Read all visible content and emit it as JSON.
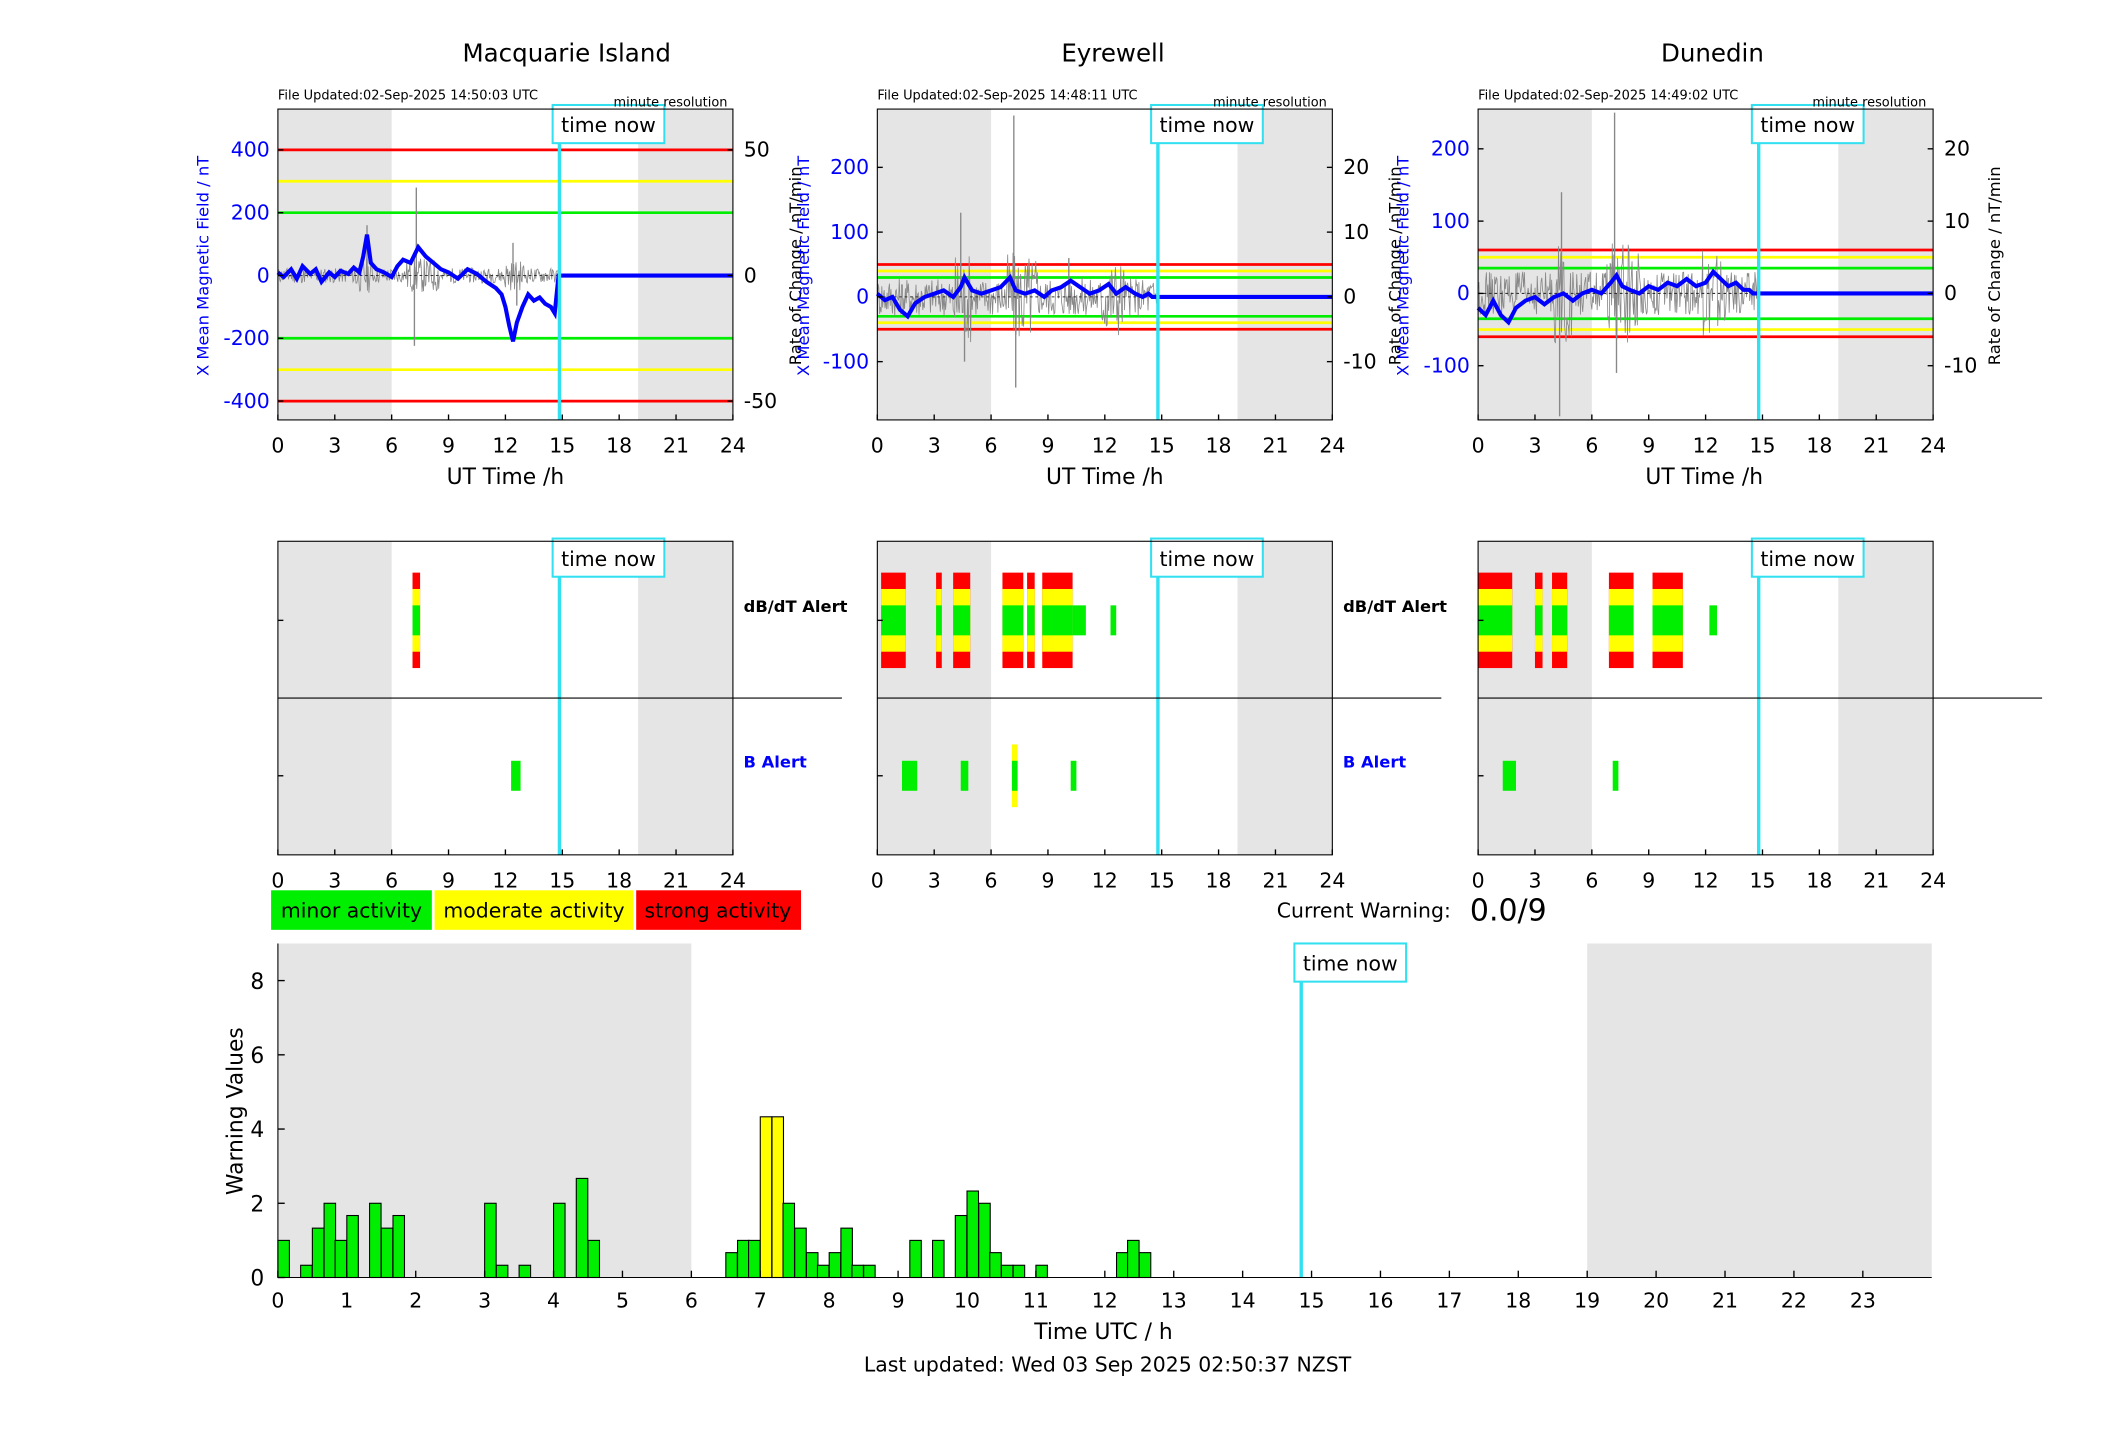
{
  "colors": {
    "minor": "#00ee00",
    "moderate": "#ffff00",
    "strong": "#ff0000",
    "time_now": "#33e0f0",
    "b_series": "#0000ff",
    "shade": "#e5e5e5"
  },
  "legend": {
    "minor": "minor activity",
    "moderate": "moderate activity",
    "strong": "strong activity"
  },
  "current_warning": {
    "label": "Current Warning:",
    "value": "0.0/9"
  },
  "time_now_label": "time now",
  "footer": "Last updated: Wed 03 Sep 2025 02:50:37 NZST",
  "alert_labels": {
    "dbdt": "dB/dT Alert",
    "b": "B Alert"
  },
  "stations": [
    {
      "name": "Macquarie Island",
      "file_updated": "File Updated:02-Sep-2025 14:50:03 UTC",
      "resolution": "minute resolution",
      "left_ylabel": "X Mean Magnetic Field / nT",
      "right_ylabel": "Rate of Change / nT/min",
      "xlabel": "UT Time /h",
      "left_ylim": [
        -460,
        530
      ],
      "left_ticks": [
        400,
        200,
        0,
        -200,
        -400
      ],
      "right_ticks": [
        50,
        0,
        -50
      ],
      "right_scale": 8,
      "thresholds": {
        "green": 200,
        "yellow": 300,
        "red": 400
      },
      "shade": [
        [
          0,
          6
        ],
        [
          19,
          24
        ]
      ],
      "time_now": 14.85,
      "b_series": [
        [
          0,
          10
        ],
        [
          0.3,
          -5
        ],
        [
          0.7,
          20
        ],
        [
          1,
          -10
        ],
        [
          1.3,
          30
        ],
        [
          1.7,
          5
        ],
        [
          2,
          20
        ],
        [
          2.3,
          -20
        ],
        [
          2.7,
          10
        ],
        [
          3,
          -5
        ],
        [
          3.3,
          15
        ],
        [
          3.7,
          5
        ],
        [
          4,
          25
        ],
        [
          4.3,
          10
        ],
        [
          4.5,
          60
        ],
        [
          4.7,
          130
        ],
        [
          4.9,
          40
        ],
        [
          5.2,
          20
        ],
        [
          5.6,
          10
        ],
        [
          6,
          -5
        ],
        [
          6.3,
          30
        ],
        [
          6.6,
          50
        ],
        [
          7,
          40
        ],
        [
          7.4,
          90
        ],
        [
          7.8,
          60
        ],
        [
          8.2,
          40
        ],
        [
          8.6,
          20
        ],
        [
          9,
          10
        ],
        [
          9.5,
          -10
        ],
        [
          10,
          20
        ],
        [
          10.5,
          5
        ],
        [
          11,
          -20
        ],
        [
          11.5,
          -40
        ],
        [
          11.8,
          -60
        ],
        [
          12,
          -100
        ],
        [
          12.2,
          -160
        ],
        [
          12.4,
          -210
        ],
        [
          12.6,
          -150
        ],
        [
          12.9,
          -100
        ],
        [
          13.2,
          -60
        ],
        [
          13.5,
          -80
        ],
        [
          13.8,
          -70
        ],
        [
          14.1,
          -90
        ],
        [
          14.4,
          -100
        ],
        [
          14.6,
          -120
        ],
        [
          14.8,
          0
        ],
        [
          24,
          0
        ]
      ],
      "rate_spikes": [
        [
          4.7,
          20
        ],
        [
          7.2,
          -28
        ],
        [
          7.3,
          35
        ],
        [
          12.4,
          13
        ],
        [
          12.6,
          -12
        ]
      ],
      "dbdt_alerts": [
        {
          "start": 7.1,
          "end": 7.5,
          "level": "strong"
        }
      ],
      "b_alerts": [
        {
          "start": 12.3,
          "end": 12.8,
          "level": "minor"
        }
      ]
    },
    {
      "name": "Eyrewell",
      "file_updated": "File Updated:02-Sep-2025 14:48:11 UTC",
      "resolution": "minute resolution",
      "left_ylabel": "X Mean Magnetic Field / nT",
      "right_ylabel": "Rate of Change / nT/min",
      "xlabel": "UT Time /h",
      "left_ylim": [
        -190,
        290
      ],
      "left_ticks": [
        200,
        100,
        0,
        -100
      ],
      "right_ticks": [
        20,
        10,
        0,
        -10
      ],
      "right_scale": 10,
      "thresholds": {
        "green": 30,
        "yellow": 40,
        "red": 50
      },
      "shade": [
        [
          0,
          6
        ],
        [
          19,
          24
        ]
      ],
      "time_now": 14.8,
      "b_series": [
        [
          0,
          5
        ],
        [
          0.4,
          -5
        ],
        [
          0.8,
          0
        ],
        [
          1.2,
          -20
        ],
        [
          1.6,
          -30
        ],
        [
          2,
          -10
        ],
        [
          2.5,
          0
        ],
        [
          3,
          5
        ],
        [
          3.5,
          10
        ],
        [
          4,
          0
        ],
        [
          4.4,
          15
        ],
        [
          4.6,
          30
        ],
        [
          5,
          10
        ],
        [
          5.5,
          5
        ],
        [
          6,
          10
        ],
        [
          6.5,
          15
        ],
        [
          7,
          30
        ],
        [
          7.3,
          10
        ],
        [
          7.8,
          5
        ],
        [
          8.3,
          10
        ],
        [
          8.8,
          0
        ],
        [
          9.2,
          10
        ],
        [
          9.7,
          15
        ],
        [
          10.2,
          25
        ],
        [
          10.7,
          15
        ],
        [
          11.2,
          5
        ],
        [
          11.7,
          10
        ],
        [
          12.2,
          20
        ],
        [
          12.6,
          5
        ],
        [
          13.1,
          15
        ],
        [
          13.6,
          5
        ],
        [
          14,
          0
        ],
        [
          14.3,
          5
        ],
        [
          14.5,
          0
        ],
        [
          24,
          0
        ]
      ],
      "rate_spikes": [
        [
          4.4,
          13
        ],
        [
          4.6,
          -10
        ],
        [
          7.2,
          28
        ],
        [
          7.3,
          -14
        ],
        [
          10.1,
          6
        ]
      ],
      "dbdt_alerts": [
        {
          "start": 0.2,
          "end": 1.5,
          "level": "strong"
        },
        {
          "start": 3.1,
          "end": 3.4,
          "level": "strong"
        },
        {
          "start": 4,
          "end": 4.9,
          "level": "strong"
        },
        {
          "start": 6.6,
          "end": 7.7,
          "level": "strong"
        },
        {
          "start": 7.9,
          "end": 8.3,
          "level": "strong"
        },
        {
          "start": 8.7,
          "end": 10.3,
          "level": "strong"
        },
        {
          "start": 10.3,
          "end": 11,
          "level": "minor"
        },
        {
          "start": 12.3,
          "end": 12.6,
          "level": "minor"
        }
      ],
      "b_alerts": [
        {
          "start": 1.3,
          "end": 2.1,
          "level": "minor"
        },
        {
          "start": 4.4,
          "end": 4.8,
          "level": "minor"
        },
        {
          "start": 7.1,
          "end": 7.4,
          "level": "moderate"
        },
        {
          "start": 10.2,
          "end": 10.5,
          "level": "minor"
        }
      ]
    },
    {
      "name": "Dunedin",
      "file_updated": "File Updated:02-Sep-2025 14:49:02 UTC",
      "resolution": "minute resolution",
      "left_ylabel": "X Mean Magnetic Field / nT",
      "right_ylabel": "Rate of Change / nT/min",
      "xlabel": "UT Time /h",
      "left_ylim": [
        -175,
        255
      ],
      "left_ticks": [
        200,
        100,
        0,
        -100
      ],
      "right_ticks": [
        20,
        10,
        0,
        -10
      ],
      "right_scale": 10,
      "thresholds": {
        "green": 35,
        "yellow": 50,
        "red": 60
      },
      "shade": [
        [
          0,
          6
        ],
        [
          19,
          24
        ]
      ],
      "time_now": 14.8,
      "b_series": [
        [
          0,
          -20
        ],
        [
          0.4,
          -30
        ],
        [
          0.8,
          -10
        ],
        [
          1.2,
          -30
        ],
        [
          1.6,
          -40
        ],
        [
          2,
          -20
        ],
        [
          2.5,
          -10
        ],
        [
          3,
          -5
        ],
        [
          3.5,
          -15
        ],
        [
          4,
          -5
        ],
        [
          4.5,
          0
        ],
        [
          5,
          -10
        ],
        [
          5.5,
          0
        ],
        [
          6,
          5
        ],
        [
          6.5,
          0
        ],
        [
          7,
          15
        ],
        [
          7.3,
          25
        ],
        [
          7.6,
          10
        ],
        [
          8,
          5
        ],
        [
          8.5,
          0
        ],
        [
          9,
          10
        ],
        [
          9.5,
          5
        ],
        [
          10,
          15
        ],
        [
          10.5,
          10
        ],
        [
          11,
          20
        ],
        [
          11.5,
          10
        ],
        [
          12,
          15
        ],
        [
          12.4,
          30
        ],
        [
          12.8,
          20
        ],
        [
          13.2,
          10
        ],
        [
          13.6,
          15
        ],
        [
          14,
          5
        ],
        [
          14.3,
          5
        ],
        [
          14.5,
          0
        ],
        [
          24,
          0
        ]
      ],
      "rate_spikes": [
        [
          4.3,
          -17
        ],
        [
          4.4,
          14
        ],
        [
          7.2,
          25
        ],
        [
          7.3,
          -11
        ]
      ],
      "dbdt_alerts": [
        {
          "start": 0,
          "end": 1.8,
          "level": "strong"
        },
        {
          "start": 3,
          "end": 3.4,
          "level": "strong"
        },
        {
          "start": 3.9,
          "end": 4.7,
          "level": "strong"
        },
        {
          "start": 6.9,
          "end": 8.2,
          "level": "strong"
        },
        {
          "start": 9.2,
          "end": 10.8,
          "level": "strong"
        },
        {
          "start": 12.2,
          "end": 12.6,
          "level": "minor"
        }
      ],
      "b_alerts": [
        {
          "start": 1.3,
          "end": 2.0,
          "level": "minor"
        },
        {
          "start": 7.1,
          "end": 7.4,
          "level": "minor"
        }
      ]
    }
  ],
  "warning_chart": {
    "ylabel": "Warning Values",
    "xlabel": "Time UTC / h",
    "ylim": [
      0,
      9
    ],
    "yticks": [
      0,
      2,
      4,
      6,
      8
    ],
    "xticks": [
      0,
      1,
      2,
      3,
      4,
      5,
      6,
      7,
      8,
      9,
      10,
      11,
      12,
      13,
      14,
      15,
      16,
      17,
      18,
      19,
      20,
      21,
      22,
      23
    ],
    "time_now": 14.85,
    "shade": [
      [
        0,
        6
      ],
      [
        19,
        24
      ]
    ],
    "bar_width_h": 0.1667,
    "bars": [
      [
        0.0,
        1.0
      ],
      [
        0.33,
        0.33
      ],
      [
        0.5,
        1.33
      ],
      [
        0.67,
        2.0
      ],
      [
        0.83,
        1.0
      ],
      [
        1.0,
        1.67
      ],
      [
        1.33,
        2.0
      ],
      [
        1.5,
        1.33
      ],
      [
        1.67,
        1.67
      ],
      [
        3.0,
        2.0
      ],
      [
        3.17,
        0.33
      ],
      [
        3.5,
        0.33
      ],
      [
        4.0,
        2.0
      ],
      [
        4.33,
        2.67
      ],
      [
        4.5,
        1.0
      ],
      [
        6.5,
        0.67
      ],
      [
        6.67,
        1.0
      ],
      [
        6.83,
        1.0
      ],
      [
        7.0,
        4.33
      ],
      [
        7.17,
        4.33
      ],
      [
        7.33,
        2.0
      ],
      [
        7.5,
        1.33
      ],
      [
        7.67,
        0.67
      ],
      [
        7.83,
        0.33
      ],
      [
        8.0,
        0.67
      ],
      [
        8.17,
        1.33
      ],
      [
        8.33,
        0.33
      ],
      [
        8.5,
        0.33
      ],
      [
        9.17,
        1.0
      ],
      [
        9.5,
        1.0
      ],
      [
        9.83,
        1.67
      ],
      [
        10.0,
        2.33
      ],
      [
        10.17,
        2.0
      ],
      [
        10.33,
        0.67
      ],
      [
        10.5,
        0.33
      ],
      [
        10.67,
        0.33
      ],
      [
        11.0,
        0.33
      ],
      [
        12.17,
        0.67
      ],
      [
        12.33,
        1.0
      ],
      [
        12.5,
        0.67
      ]
    ],
    "moderate_threshold": 3
  }
}
